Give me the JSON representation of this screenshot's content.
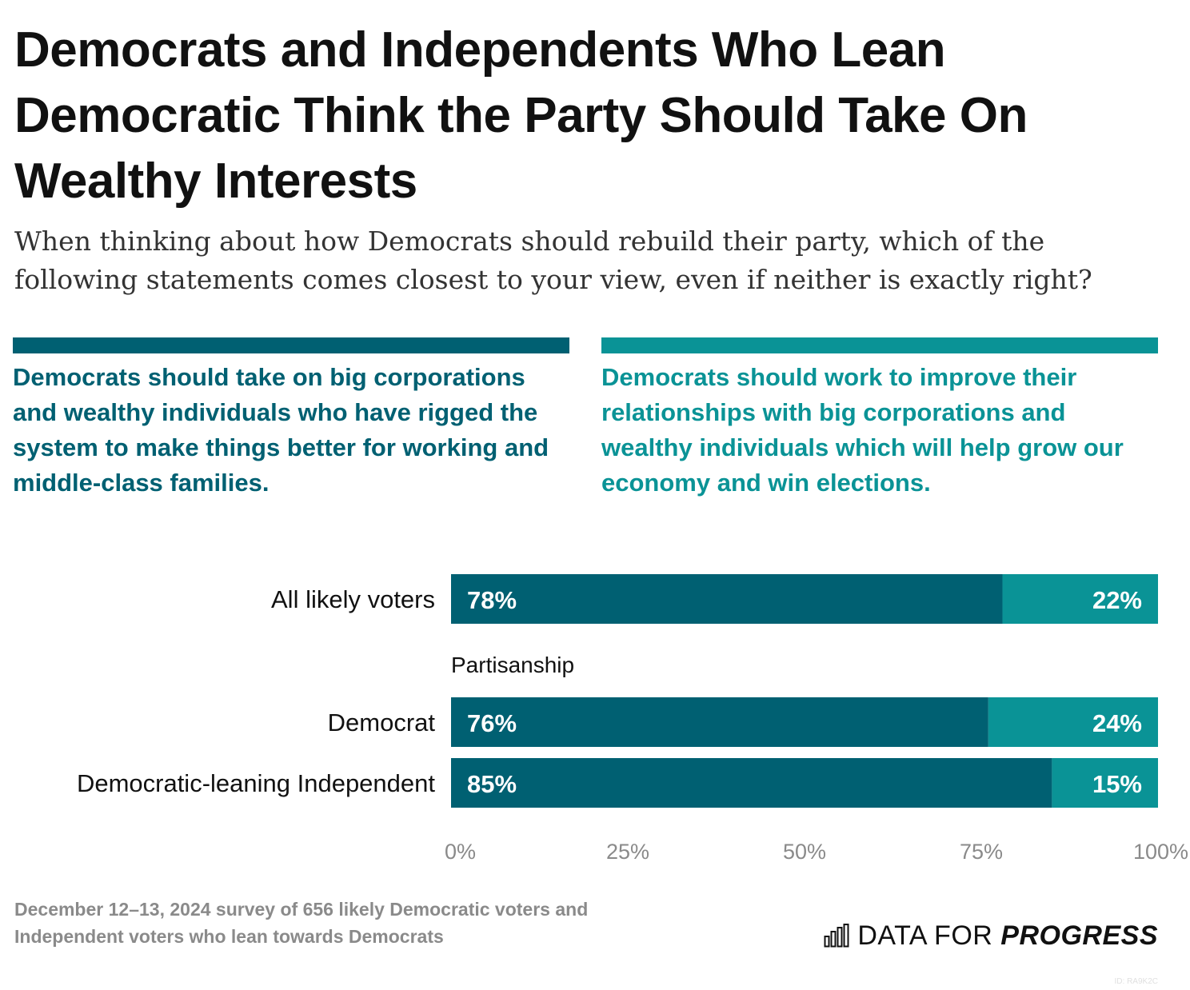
{
  "title": "Democrats and Independents Who Lean Democratic Think the Party Should Take On Wealthy Interests",
  "subtitle": "When thinking about how Democrats should rebuild their party, which of the following statements comes closest to your view, even if neither is exactly right?",
  "colors": {
    "take_on": "#006072",
    "improve": "#0a9396",
    "axis_text": "#8a8a8a"
  },
  "chart_data": {
    "type": "bar",
    "orientation": "horizontal",
    "stacked": true,
    "categories": [
      "All likely voters",
      "Democrat",
      "Democratic-leaning Independent"
    ],
    "group_label": "Partisanship",
    "series": [
      {
        "name": "Democrats should take on big corporations and wealthy individuals who have rigged the system to make things better for working and middle-class families.",
        "values": [
          78,
          76,
          85
        ],
        "labels": [
          "78%",
          "76%",
          "85%"
        ]
      },
      {
        "name": "Democrats should work to improve their relationships with big corporations and wealthy individuals which will help grow our economy and win elections.",
        "values": [
          22,
          24,
          15
        ],
        "labels": [
          "22%",
          "24%",
          "15%"
        ]
      }
    ],
    "xlim": [
      0,
      100
    ],
    "xticks": [
      0,
      25,
      50,
      75,
      100
    ],
    "xtick_labels": [
      "0%",
      "25%",
      "50%",
      "75%",
      "100%"
    ],
    "grid": false,
    "legend_position": "top"
  },
  "footnote": "December 12–13, 2024 survey of 656 likely Democratic voters and Independent voters who lean towards Democrats",
  "logo": {
    "text_plain": "DATA FOR ",
    "text_strong": "PROGRESS",
    "icon": "bar-chart-icon"
  },
  "chart_id": "ID: RA9K2C"
}
